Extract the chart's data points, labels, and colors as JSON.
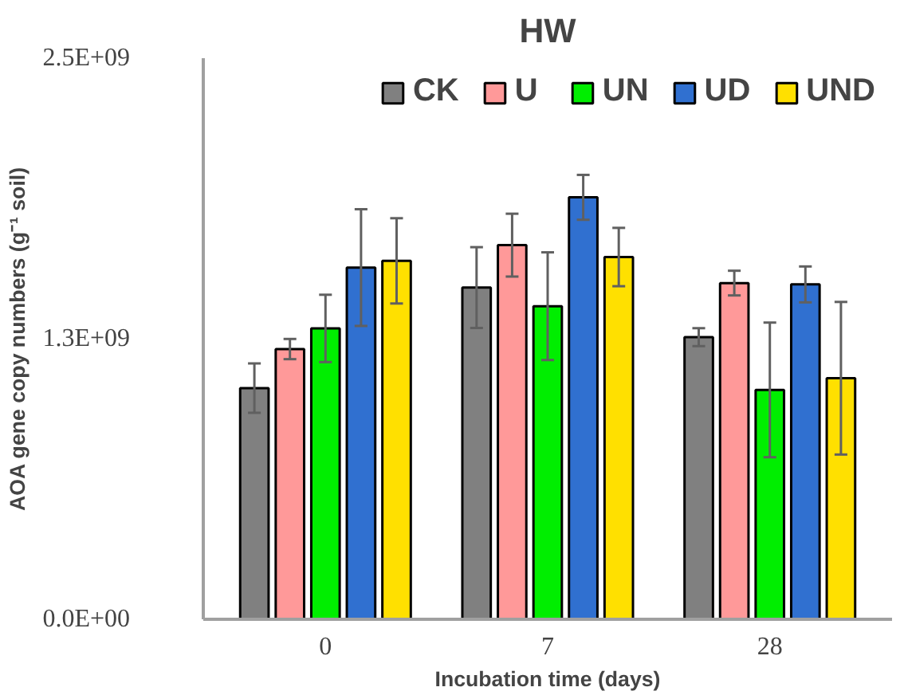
{
  "chart_data": {
    "type": "bar",
    "title": "HW",
    "xlabel": "Incubation time (days)",
    "ylabel": "AOA gene copy numbers (g⁻¹ soil)",
    "categories": [
      "0",
      "7",
      "28"
    ],
    "series": [
      {
        "name": "CK",
        "color": "#808080",
        "values": [
          1030000000,
          1478000000,
          1257000000
        ],
        "errors": [
          110000000,
          180000000,
          40000000
        ]
      },
      {
        "name": "U",
        "color": "#ff9999",
        "values": [
          1204000000,
          1667000000,
          1498000000
        ],
        "errors": [
          45000000,
          140000000,
          55000000
        ]
      },
      {
        "name": "UN",
        "color": "#00ee00",
        "values": [
          1296000000,
          1395000000,
          1022000000
        ],
        "errors": [
          150000000,
          240000000,
          300000000
        ]
      },
      {
        "name": "UD",
        "color": "#3070d0",
        "values": [
          1567000000,
          1880000000,
          1492000000
        ],
        "errors": [
          260000000,
          100000000,
          80000000
        ]
      },
      {
        "name": "UND",
        "color": "#ffe000",
        "values": [
          1597000000,
          1614000000,
          1074000000
        ],
        "errors": [
          190000000,
          130000000,
          340000000
        ]
      }
    ],
    "ylim": [
      0,
      2500000000
    ],
    "yticks": [
      {
        "value": 0,
        "label": "0.0E+00"
      },
      {
        "value": 1250000000,
        "label": "1.3E+09"
      },
      {
        "value": 2500000000,
        "label": "2.5E+09"
      }
    ],
    "grid": false,
    "legend": "top"
  }
}
